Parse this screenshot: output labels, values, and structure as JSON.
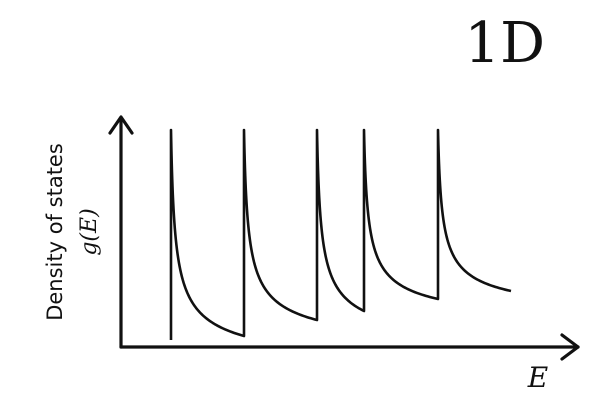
{
  "title": "1D",
  "y_axis_label_line1": "Density of states",
  "y_axis_label_line2": "g(E)",
  "x_axis_label": "E",
  "colors": {
    "ink": "#111111",
    "background": "#ffffff"
  }
}
